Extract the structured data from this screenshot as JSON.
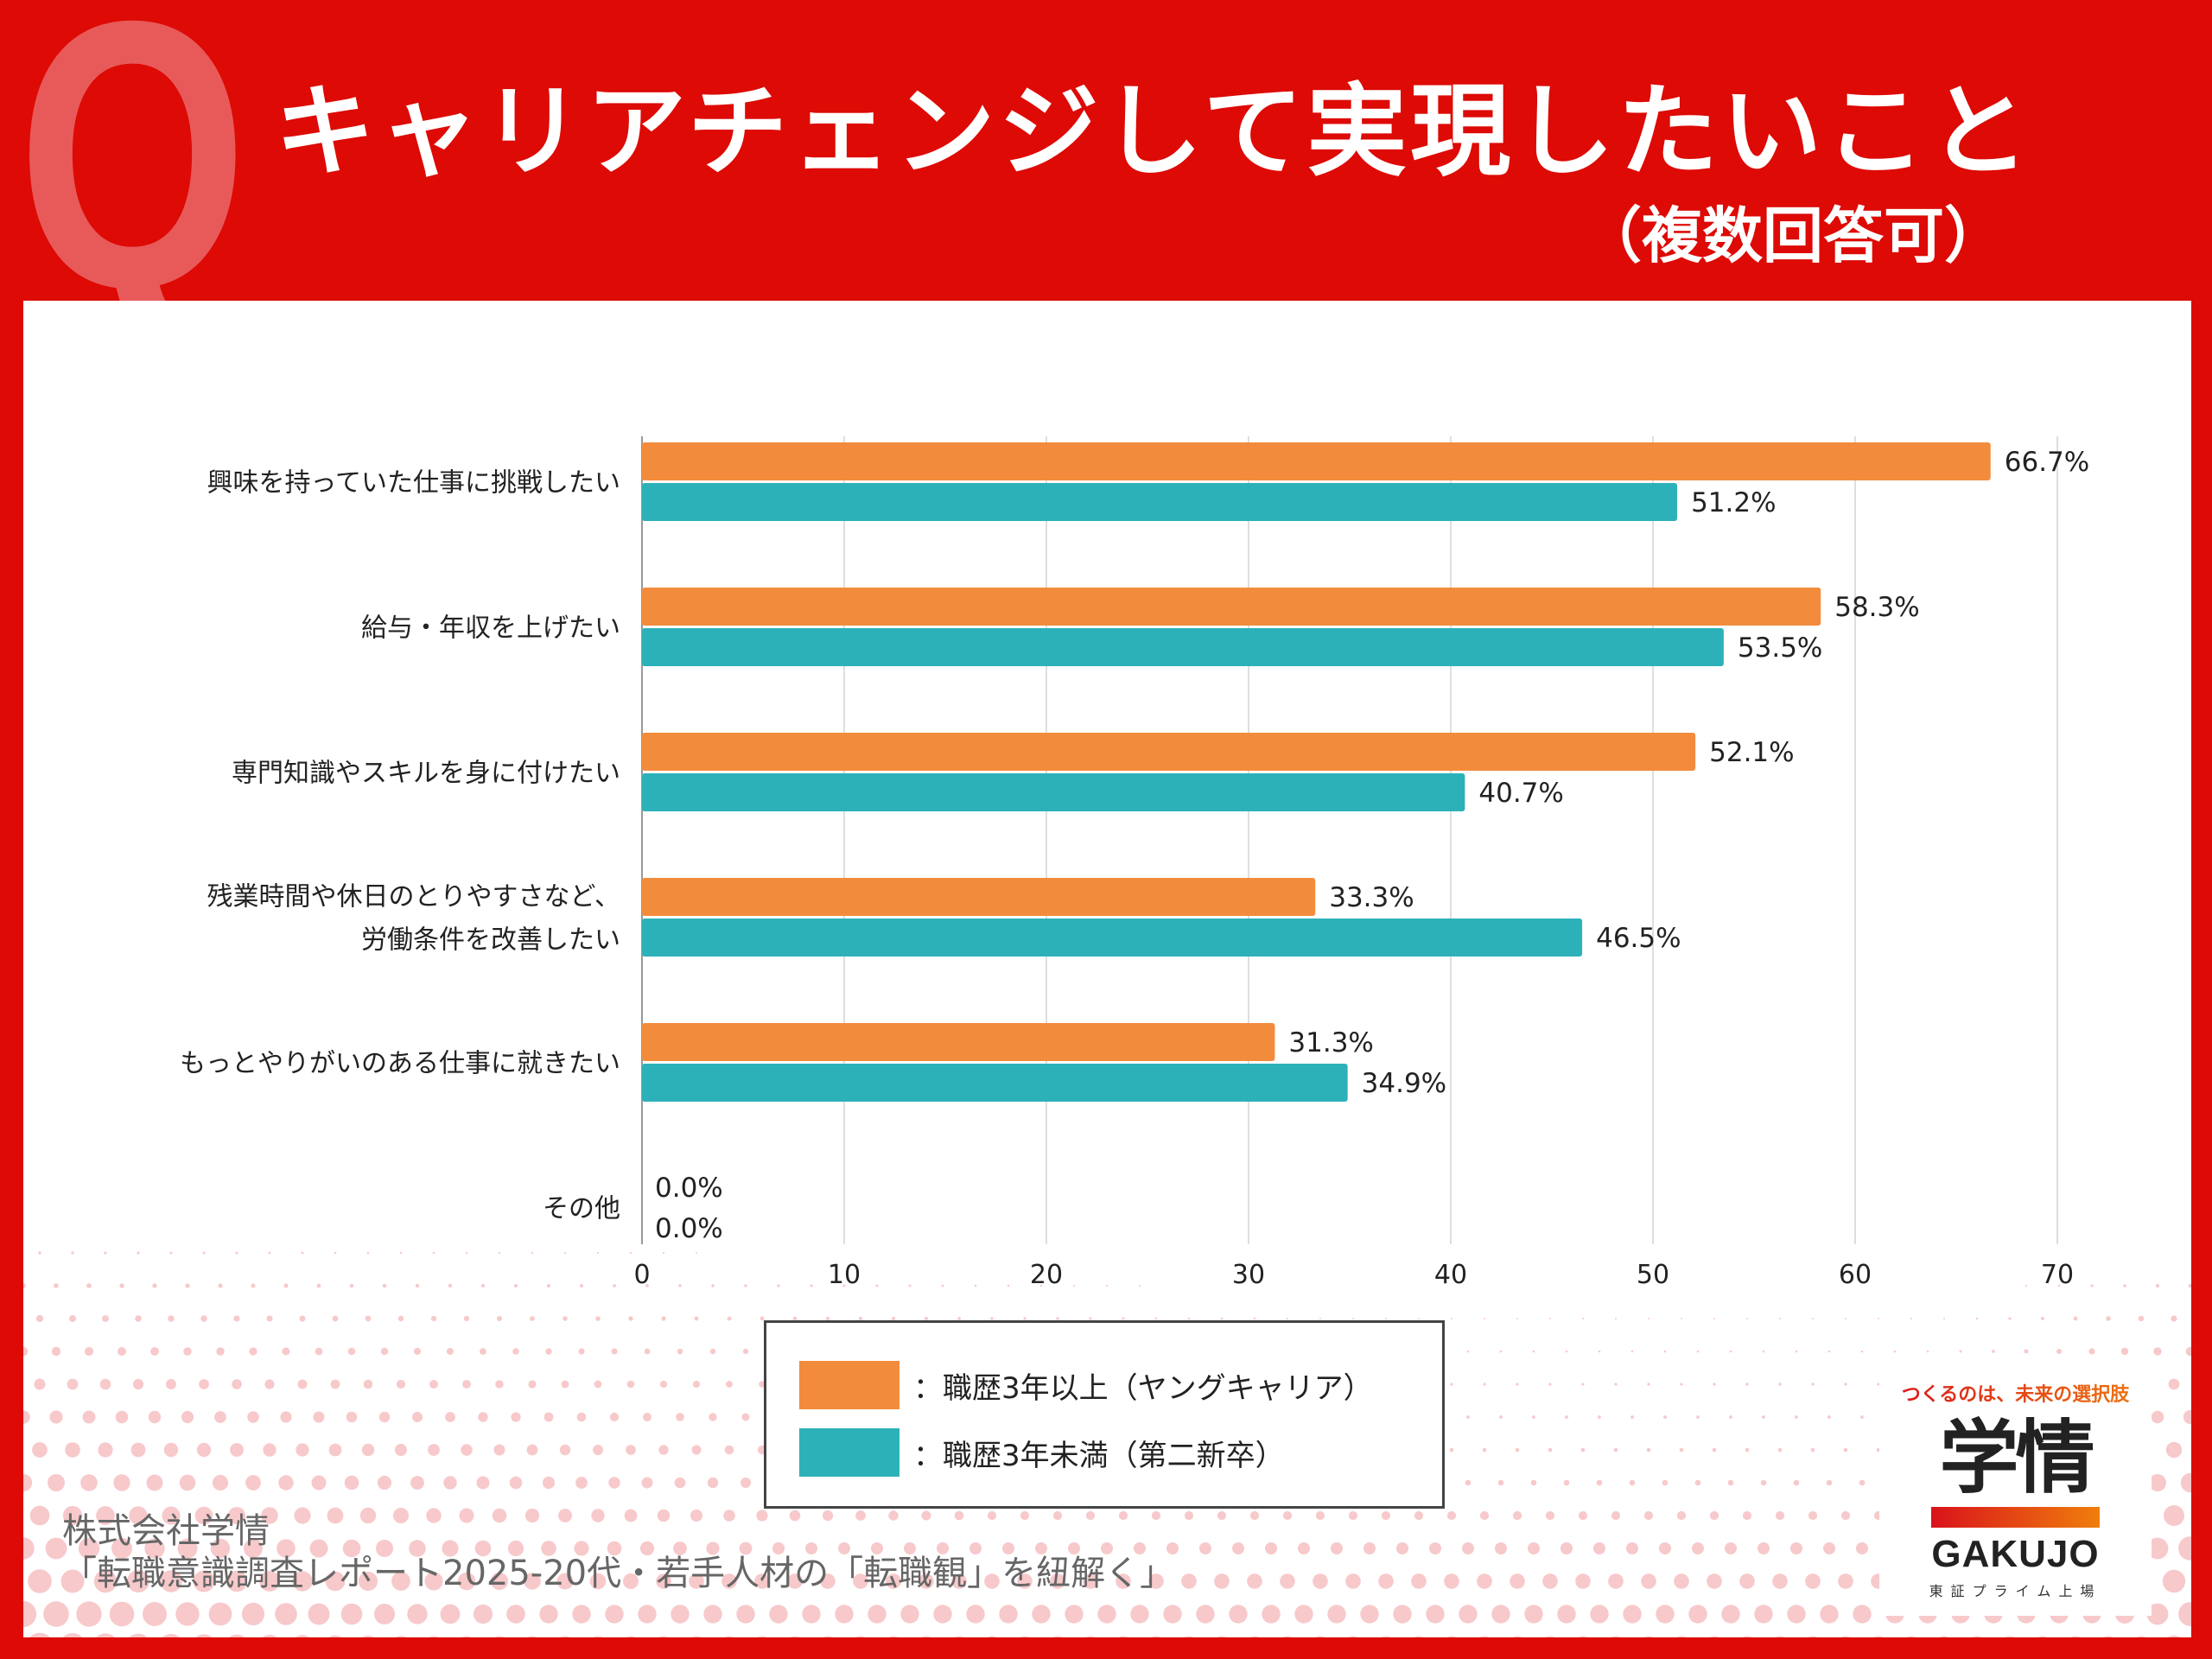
{
  "header": {
    "q_letter": "Q",
    "title": "キャリアチェンジして実現したいこと",
    "subtitle": "（複数回答可）"
  },
  "colors": {
    "frame_red": "#DD0A05",
    "series_orange": "#F28C3C",
    "series_teal": "#2DB1B9",
    "dot_pink": "#F7C9CB"
  },
  "chart_data": {
    "type": "bar",
    "orientation": "horizontal",
    "title": "キャリアチェンジして実現したいこと（複数回答可）",
    "xlabel": "",
    "ylabel": "",
    "xlim": [
      0,
      70
    ],
    "grid": true,
    "legend_position": "bottom-center",
    "x_ticks": [
      "0",
      "10",
      "20",
      "30",
      "40",
      "50",
      "60",
      "70"
    ],
    "categories": [
      [
        "興味を持っていた仕事に挑戦したい"
      ],
      [
        "給与・年収を上げたい"
      ],
      [
        "専門知識やスキルを身に付けたい"
      ],
      [
        "残業時間や休日のとりやすさなど、",
        "労働条件を改善したい"
      ],
      [
        "もっとやりがいのある仕事に就きたい"
      ],
      [
        "その他"
      ]
    ],
    "series": [
      {
        "name": "：職歴3年以上（ヤングキャリア）",
        "color": "#F28C3C",
        "values": [
          66.7,
          58.3,
          52.1,
          33.3,
          31.3,
          0.0
        ],
        "labels": [
          "66.7%",
          "58.3%",
          "52.1%",
          "33.3%",
          "31.3%",
          "0.0%"
        ]
      },
      {
        "name": "：職歴3年未満（第二新卒）",
        "color": "#2DB1B9",
        "values": [
          51.2,
          53.5,
          40.7,
          46.5,
          34.9,
          0.0
        ],
        "labels": [
          "51.2%",
          "53.5%",
          "40.7%",
          "46.5%",
          "34.9%",
          "0.0%"
        ]
      }
    ]
  },
  "footer": {
    "company": "株式会社学情",
    "source": "「転職意識調査レポート2025-20代・若手人材の「転職観」を紐解く」"
  },
  "logo": {
    "tagline": "つくるのは、未来の選択肢",
    "mark": "学情",
    "wordmark": "GAKUJO",
    "listing": "東証プライム上場"
  }
}
